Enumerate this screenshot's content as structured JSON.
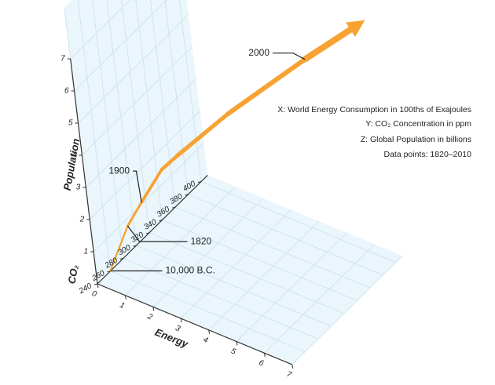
{
  "chart_data": {
    "type": "line3d",
    "x_label": "Energy",
    "y_label": "CO₂",
    "z_label": "Population",
    "notes": [
      "X: World Energy Consumption in 100ths of Exajoules",
      "Y: CO₂ Concentration in ppm",
      "Z: Global Population in billions",
      "Data points: 1820–2010"
    ],
    "xlim": [
      0,
      7
    ],
    "xticks": [
      0,
      1,
      2,
      3,
      4,
      5,
      6,
      7
    ],
    "ylim": [
      240,
      410
    ],
    "yticks": [
      240,
      260,
      280,
      300,
      320,
      340,
      360,
      380,
      400
    ],
    "zlim": [
      0,
      7
    ],
    "zticks": [
      1,
      2,
      3,
      4,
      5,
      6,
      7
    ],
    "grid": true,
    "series": [
      {
        "color": "#f7a233",
        "x": [
          0,
          0.2,
          0.5,
          1.0,
          1.5,
          3.0,
          5.3,
          7.2
        ],
        "y": [
          260,
          284,
          296,
          311,
          317,
          339,
          370,
          390
        ],
        "z": [
          0.005,
          1.0,
          1.6,
          2.5,
          3.0,
          4.4,
          6.3,
          7.8
        ],
        "point_labels": [
          "10,000 B.C.",
          "1820",
          "1900",
          null,
          null,
          null,
          "2000",
          null
        ]
      }
    ]
  }
}
